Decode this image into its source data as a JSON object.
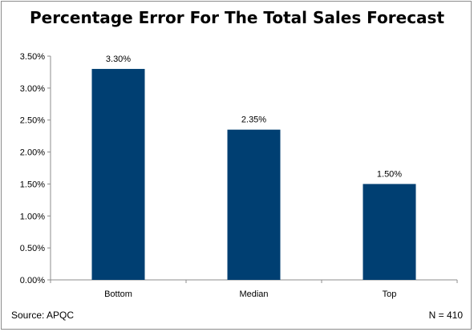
{
  "chart_data": {
    "type": "bar",
    "title": "Percentage Error For The Total Sales Forecast",
    "categories": [
      "Bottom",
      "Median",
      "Top"
    ],
    "values": [
      3.3,
      2.35,
      1.5
    ],
    "data_labels": [
      "3.30%",
      "2.35%",
      "1.50%"
    ],
    "y_ticks": [
      0,
      0.5,
      1.0,
      1.5,
      2.0,
      2.5,
      3.0,
      3.5
    ],
    "y_tick_labels": [
      "0.00%",
      "0.50%",
      "1.00%",
      "1.50%",
      "2.00%",
      "2.50%",
      "3.00%",
      "3.50%"
    ],
    "ylim": [
      0,
      3.5
    ],
    "xlabel": "",
    "ylabel": "",
    "grid": false,
    "bar_color": "#003f72"
  },
  "footer": {
    "source": "Source: APQC",
    "n": "N = 410"
  }
}
